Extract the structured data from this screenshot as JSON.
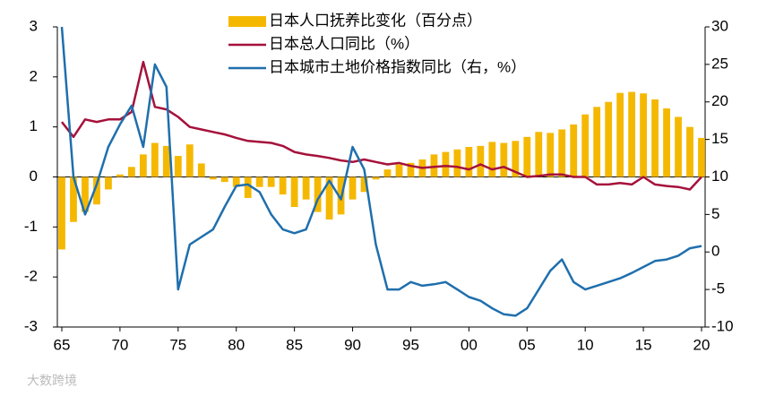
{
  "chart_data": {
    "type": "bar",
    "categories": [
      "65",
      null,
      null,
      null,
      null,
      "70",
      null,
      null,
      null,
      null,
      "75",
      null,
      null,
      null,
      null,
      "80",
      null,
      null,
      null,
      null,
      "85",
      null,
      null,
      null,
      null,
      "90",
      null,
      null,
      null,
      null,
      "95",
      null,
      null,
      null,
      null,
      "00",
      null,
      null,
      null,
      null,
      "05",
      null,
      null,
      null,
      null,
      "10",
      null,
      null,
      null,
      null,
      "15",
      null,
      null,
      null,
      null,
      "20"
    ],
    "series": [
      {
        "name": "日本人口抚养比变化（百分点）",
        "type": "bar",
        "color": "#f5b800",
        "values": [
          -1.45,
          -0.9,
          -0.7,
          -0.55,
          -0.25,
          0.05,
          0.2,
          0.45,
          0.68,
          0.62,
          0.42,
          0.65,
          0.27,
          -0.05,
          -0.1,
          -0.2,
          -0.42,
          -0.2,
          -0.2,
          -0.35,
          -0.6,
          -0.45,
          -0.7,
          -0.85,
          -0.75,
          -0.45,
          -0.3,
          -0.05,
          0.15,
          0.25,
          0.28,
          0.35,
          0.45,
          0.5,
          0.55,
          0.6,
          0.62,
          0.7,
          0.68,
          0.72,
          0.8,
          0.9,
          0.88,
          0.95,
          1.05,
          1.25,
          1.4,
          1.5,
          1.68,
          1.7,
          1.67,
          1.55,
          1.37,
          1.2,
          1.0,
          0.78
        ]
      },
      {
        "name": "日本总人口同比（%）",
        "type": "line",
        "color": "#a5113b",
        "values": [
          1.1,
          0.8,
          1.15,
          1.1,
          1.15,
          1.15,
          1.3,
          2.3,
          1.4,
          1.35,
          1.2,
          1.0,
          0.95,
          0.9,
          0.85,
          0.78,
          0.72,
          0.7,
          0.68,
          0.62,
          0.5,
          0.45,
          0.42,
          0.38,
          0.33,
          0.3,
          0.35,
          0.3,
          0.25,
          0.28,
          0.22,
          0.18,
          0.2,
          0.22,
          0.2,
          0.15,
          0.25,
          0.15,
          0.2,
          0.1,
          0.0,
          0.02,
          0.05,
          0.05,
          0.0,
          0.0,
          -0.15,
          -0.15,
          -0.12,
          -0.15,
          0.0,
          -0.15,
          -0.18,
          -0.2,
          -0.25,
          0.0
        ]
      },
      {
        "name": "日本城市土地价格指数同比（右，%）",
        "type": "line",
        "axis": "y2",
        "color": "#1f6fad",
        "values": [
          30,
          10,
          5,
          9,
          14,
          17,
          19.5,
          14,
          25,
          22,
          -5,
          1,
          2,
          3,
          6,
          8.8,
          9,
          8,
          5,
          3,
          2.5,
          3,
          7,
          9.5,
          7,
          14,
          11,
          1,
          -5,
          -5,
          -4,
          -4.5,
          -4.3,
          -4,
          -5,
          -6,
          -6.5,
          -7.5,
          -8.3,
          -8.5,
          -7.5,
          -5,
          -2.5,
          -1,
          -4,
          -5,
          -4.5,
          -4,
          -3.5,
          -2.8,
          -2,
          -1.2,
          -1,
          -0.5,
          0.5,
          0.8
        ]
      }
    ],
    "ylim": [
      -3,
      3
    ],
    "yticks": [
      -3,
      -2,
      -1,
      0,
      1,
      2,
      3
    ],
    "y2lim": [
      -10,
      30
    ],
    "y2ticks": [
      -10,
      -5,
      0,
      5,
      10,
      15,
      20,
      25,
      30
    ],
    "legend": "top",
    "watermark": "大数跨境"
  }
}
